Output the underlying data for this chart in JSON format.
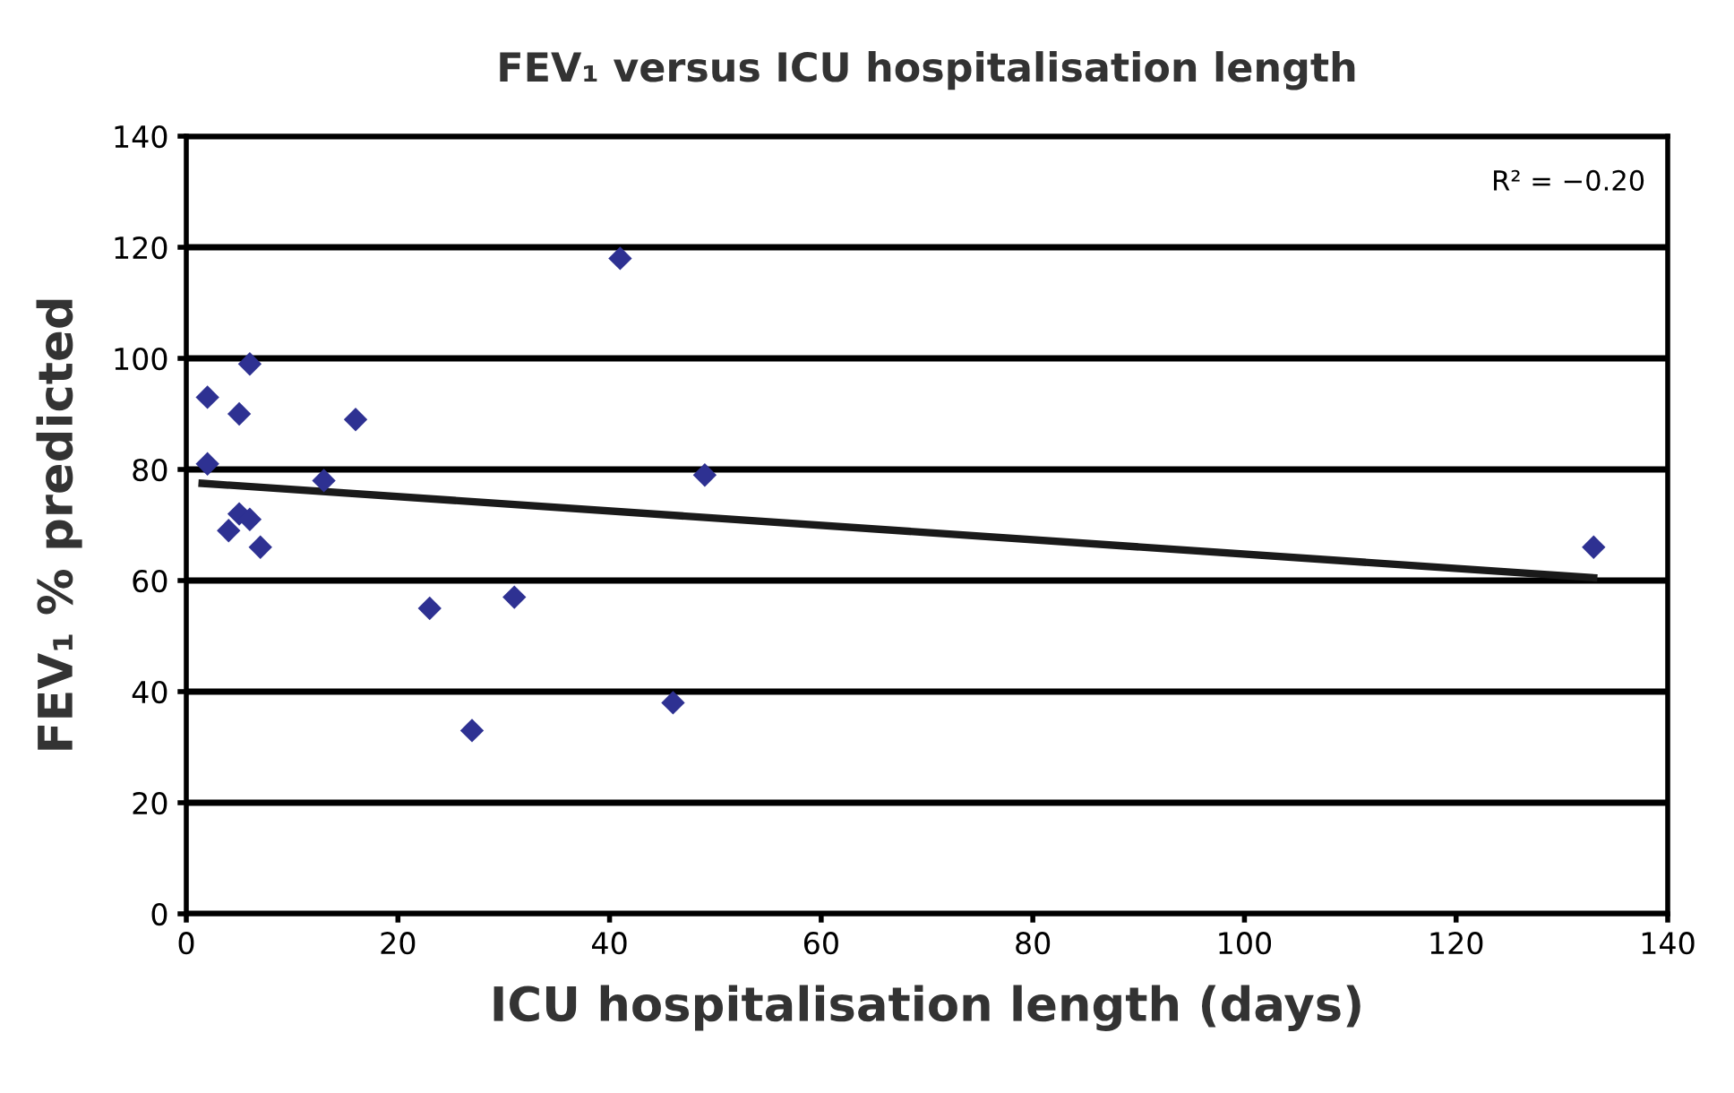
{
  "chart_data": {
    "type": "scatter",
    "title": "FEV₁ versus ICU hospitalisation length",
    "xlabel": "ICU hospitalisation length (days)",
    "ylabel": "FEV₁ % predicted",
    "annotations": [
      "R² = −0.20"
    ],
    "series": [
      {
        "color": "#2e3192",
        "marker": "diamond",
        "x": [
          2,
          2,
          5,
          6,
          4,
          5,
          6,
          7,
          13,
          16,
          23,
          27,
          31,
          41,
          46,
          49,
          133
        ],
        "values": [
          93,
          81,
          90,
          99,
          69,
          72,
          71,
          66,
          78,
          89,
          55,
          33,
          57,
          118,
          38,
          79,
          66
        ]
      },
      {
        "type": "line",
        "color": "#1a1a1a",
        "x": [
          1.5,
          133
        ],
        "values": [
          77.5,
          60.5
        ]
      }
    ],
    "xlim": [
      0,
      140
    ],
    "xticks": [
      0,
      20,
      40,
      60,
      80,
      100,
      120,
      140
    ],
    "ylim": [
      0,
      140
    ],
    "yticks": [
      0,
      20,
      40,
      60,
      80,
      100,
      120,
      140
    ],
    "grid": "y"
  }
}
